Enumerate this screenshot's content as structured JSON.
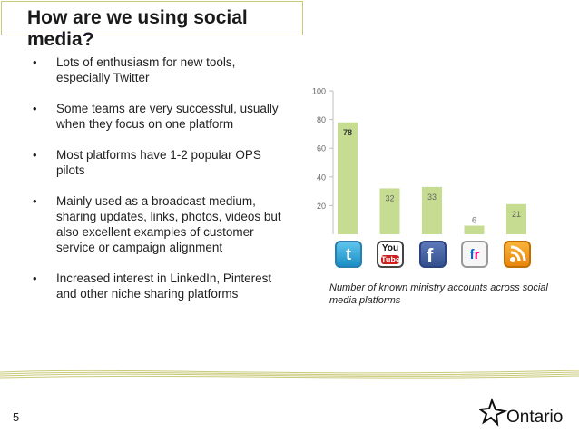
{
  "slide": {
    "title": "How are we using social media?",
    "bullets": [
      "Lots of enthusiasm for new tools, especially Twitter",
      "Some teams are very successful, usually when they focus on one platform",
      "Most platforms have 1-2 popular OPS pilots",
      "Mainly used as a broadcast medium, sharing updates, links, photos, videos but also excellent examples of customer service or campaign alignment",
      "Increased interest in LinkedIn, Pinterest and other niche sharing platforms"
    ],
    "page_number": "5",
    "logo_text": "Ontario"
  },
  "chart_data": {
    "type": "bar",
    "categories": [
      "Twitter",
      "YouTube",
      "Facebook",
      "Flickr",
      "RSS"
    ],
    "values": [
      78,
      32,
      33,
      6,
      21
    ],
    "data_labels": [
      "78",
      "32",
      "33",
      "6",
      "21"
    ],
    "yticks": [
      "20",
      "40",
      "60",
      "80",
      "100"
    ],
    "ylim": [
      0,
      100
    ],
    "bar_color": "#c6dc91",
    "caption": "Number of known ministry accounts across social media platforms",
    "icons": [
      "twitter-icon",
      "youtube-icon",
      "facebook-icon",
      "flickr-icon",
      "rss-icon"
    ]
  }
}
